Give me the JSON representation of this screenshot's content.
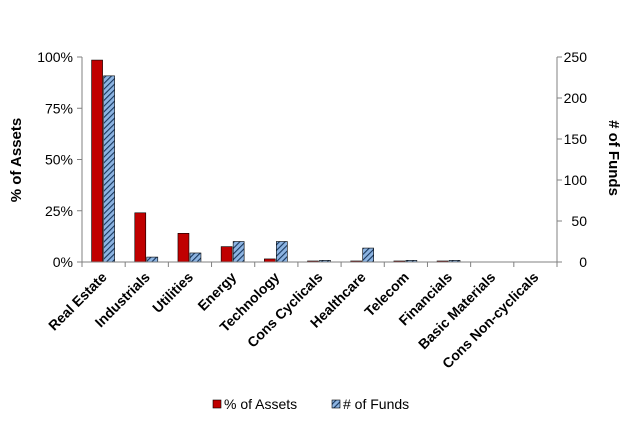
{
  "chart_data": {
    "type": "bar",
    "categories": [
      "Real Estate",
      "Industrials",
      "Utilities",
      "Energy",
      "Technology",
      "Cons Cyclicals",
      "Healthcare",
      "Telecom",
      "Financials",
      "Basic Materials",
      "Cons Non-cyclicals"
    ],
    "series": [
      {
        "name": "% of Assets",
        "axis": "left",
        "values": [
          98.5,
          24,
          14,
          7.5,
          1.5,
          0.5,
          0.5,
          0.5,
          0.5,
          0,
          0
        ]
      },
      {
        "name": "# of Funds",
        "axis": "right",
        "values": [
          227,
          6,
          11,
          25,
          25,
          2,
          17,
          2,
          2,
          0,
          0
        ]
      }
    ],
    "y_left": {
      "label": "% of Assets",
      "ylim": [
        0,
        100
      ],
      "ticks": [
        "0%",
        "25%",
        "50%",
        "75%",
        "100%"
      ],
      "tick_values": [
        0,
        25,
        50,
        75,
        100
      ]
    },
    "y_right": {
      "label": "# of Funds",
      "ylim": [
        0,
        250
      ],
      "ticks": [
        "0",
        "50",
        "100",
        "150",
        "200",
        "250"
      ],
      "tick_values": [
        0,
        50,
        100,
        150,
        200,
        250
      ]
    },
    "legend_placement": "bottom",
    "grid": false,
    "colors": {
      "assets": "#c00000",
      "funds": "#8db4e2",
      "funds_hatch": "#17375e"
    }
  }
}
